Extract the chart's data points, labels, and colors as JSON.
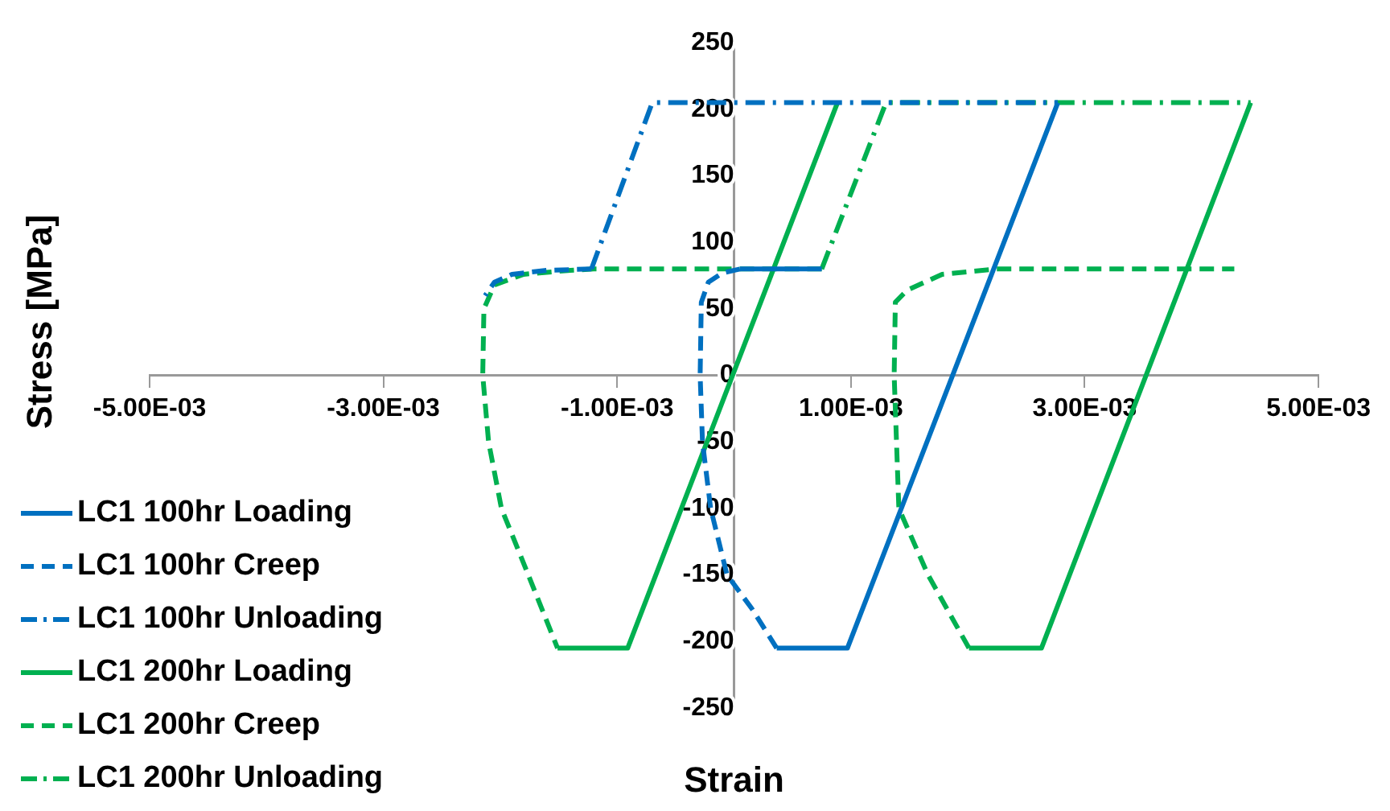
{
  "chart_data": {
    "type": "line",
    "xlabel": "Strain",
    "ylabel": "Stress [MPa]",
    "xlim": [
      -0.005,
      0.005
    ],
    "xticks": [
      {
        "value": -0.005,
        "label": "-5.00E-03"
      },
      {
        "value": -0.003,
        "label": "-3.00E-03"
      },
      {
        "value": -0.001,
        "label": "-1.00E-03"
      },
      {
        "value": 0.001,
        "label": "1.00E-03"
      },
      {
        "value": 0.003,
        "label": "3.00E-03"
      },
      {
        "value": 0.005,
        "label": "5.00E-03"
      }
    ],
    "ylim": [
      -250,
      250
    ],
    "yticks": [
      -250,
      -200,
      -150,
      -100,
      -50,
      0,
      50,
      100,
      150,
      200,
      250
    ],
    "grid": false,
    "legend": "bottom left",
    "series": [
      {
        "name": "LC1 100hr Loading",
        "color": "#0070c0",
        "line_style": "solid",
        "x": [
          5e-05,
          0.00075,
          null,
          0.000365,
          0.00097,
          0.00277
        ],
        "values": [
          80,
          80,
          null,
          -205,
          -205,
          205
        ]
      },
      {
        "name": "LC1 100hr Creep",
        "color": "#0070c0",
        "line_style": "dashed",
        "x": [
          -0.00122,
          -0.0016,
          -0.0019,
          -0.00205,
          -0.00213,
          null,
          0.000365,
          0.00015,
          -6e-05,
          -0.0002,
          -0.00027,
          -0.00029,
          -0.00028,
          -0.00022,
          -0.0001,
          5e-05
        ],
        "values": [
          80,
          79,
          76,
          70,
          60,
          null,
          -205,
          -175,
          -150,
          -100,
          -50,
          0,
          55,
          70,
          77,
          80
        ]
      },
      {
        "name": "LC1 100hr Unloading",
        "color": "#0070c0",
        "line_style": "dashdot",
        "x": [
          -0.00122,
          -0.0007,
          0.00277
        ],
        "values": [
          80,
          205,
          205
        ]
      },
      {
        "name": "LC1 200hr Loading",
        "color": "#00b050",
        "line_style": "solid",
        "x": [
          -0.00151,
          -0.00091,
          0.000885,
          null,
          0.00201,
          0.00263,
          0.00442
        ],
        "values": [
          -205,
          -205,
          205,
          null,
          -205,
          -205,
          205
        ]
      },
      {
        "name": "LC1 200hr Creep",
        "color": "#00b050",
        "line_style": "dashed",
        "x": [
          0.00075,
          -0.0012,
          -0.0014,
          -0.0018,
          -0.00205,
          -0.00214,
          -0.00215,
          -0.0021,
          -0.00199,
          -0.00176,
          -0.00151,
          null,
          0.00201,
          0.00166,
          0.00141,
          0.00137,
          0.00138,
          0.00148,
          0.00178,
          0.00224,
          0.00428
        ],
        "values": [
          80,
          80,
          79,
          76,
          68,
          50,
          0,
          -50,
          -100,
          -150,
          -205,
          null,
          -205,
          -150,
          -100,
          0,
          55,
          64,
          76,
          80,
          80
        ]
      },
      {
        "name": "LC1 200hr Unloading",
        "color": "#00b050",
        "line_style": "dashdot",
        "x": [
          0.00075,
          0.0013,
          0.00442
        ],
        "values": [
          80,
          205,
          205
        ]
      }
    ]
  }
}
